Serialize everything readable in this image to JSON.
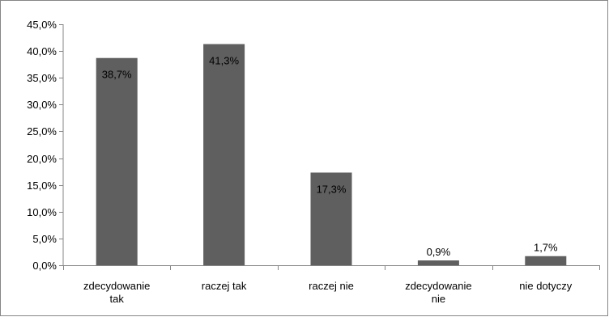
{
  "chart_data": {
    "type": "bar",
    "categories": [
      "zdecydowanie tak",
      "raczej tak",
      "raczej nie",
      "zdecydowanie nie",
      "nie dotyczy"
    ],
    "category_lines": [
      [
        "zdecydowanie",
        "tak"
      ],
      [
        "raczej tak"
      ],
      [
        "raczej nie"
      ],
      [
        "zdecydowanie",
        "nie"
      ],
      [
        "nie dotyczy"
      ]
    ],
    "values": [
      38.7,
      41.3,
      17.3,
      0.9,
      1.7
    ],
    "data_labels": [
      "38,7%",
      "41,3%",
      "17,3%",
      "0,9%",
      "1,7%"
    ],
    "yticks": [
      0,
      5,
      10,
      15,
      20,
      25,
      30,
      35,
      40,
      45
    ],
    "ytick_labels": [
      "0,0%",
      "5,0%",
      "10,0%",
      "15,0%",
      "20,0%",
      "25,0%",
      "30,0%",
      "35,0%",
      "40,0%",
      "45,0%"
    ],
    "ylim": [
      0,
      45
    ],
    "title": "",
    "xlabel": "",
    "ylabel": "",
    "grid": false,
    "legend": "none",
    "colors": {
      "bar": "#5f5f5f",
      "axis": "#868686",
      "border": "#868686",
      "text": "#000000"
    }
  }
}
